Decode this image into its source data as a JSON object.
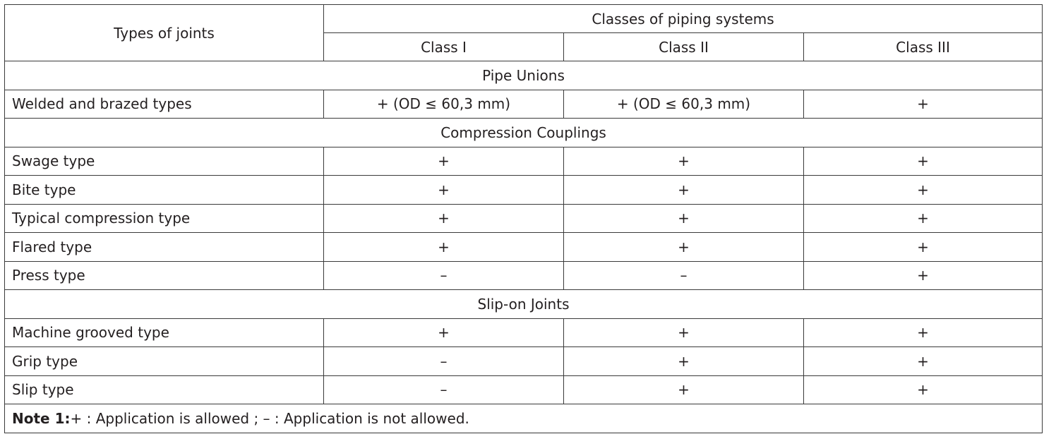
{
  "header": {
    "types_of_joints": "Types of joints",
    "classes_title": "Classes of piping systems",
    "class_1": "Class I",
    "class_2": "Class II",
    "class_3": "Class III"
  },
  "sections": [
    {
      "title": "Pipe Unions",
      "rows": [
        {
          "name": "Welded and brazed types",
          "c1": "+ (OD ≤ 60,3 mm)",
          "c2": "+ (OD ≤ 60,3 mm)",
          "c3": "+"
        }
      ]
    },
    {
      "title": "Compression Couplings",
      "rows": [
        {
          "name": "Swage type",
          "c1": "+",
          "c2": "+",
          "c3": "+"
        },
        {
          "name": "Bite type",
          "c1": "+",
          "c2": "+",
          "c3": "+"
        },
        {
          "name": "Typical compression type",
          "c1": "+",
          "c2": "+",
          "c3": "+"
        },
        {
          "name": "Flared type",
          "c1": "+",
          "c2": "+",
          "c3": "+"
        },
        {
          "name": "Press type",
          "c1": "–",
          "c2": "–",
          "c3": "+"
        }
      ]
    },
    {
      "title": "Slip-on Joints",
      "rows": [
        {
          "name": "Machine grooved type",
          "c1": "+",
          "c2": "+",
          "c3": "+"
        },
        {
          "name": "Grip type",
          "c1": "–",
          "c2": "+",
          "c3": "+"
        },
        {
          "name": "Slip type",
          "c1": "–",
          "c2": "+",
          "c3": "+"
        }
      ]
    }
  ],
  "note": {
    "label": "Note 1:",
    "text": "+ : Application is allowed ; – : Application is not allowed."
  }
}
